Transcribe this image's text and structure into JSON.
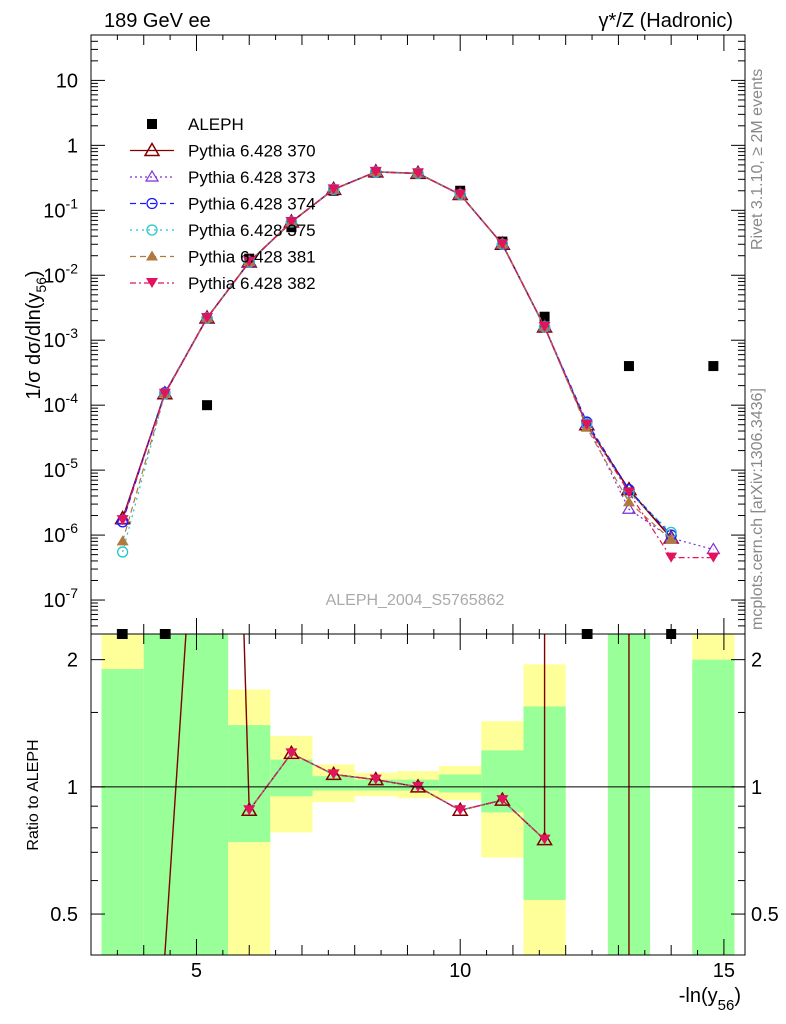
{
  "header": {
    "left": "189 GeV ee",
    "right": "γ*/Z (Hadronic)"
  },
  "side_labels": {
    "rivet": "Rivet 3.1.10, ≥ 2M events",
    "mcplots": "mcplots.cern.ch [arXiv:1306.3436]"
  },
  "watermark": "ALEPH_2004_S5765862",
  "legend": [
    {
      "key": "aleph",
      "label": "ALEPH"
    },
    {
      "key": "p370",
      "label": "Pythia 6.428 370"
    },
    {
      "key": "p373",
      "label": "Pythia 6.428 373"
    },
    {
      "key": "p374",
      "label": "Pythia 6.428 374"
    },
    {
      "key": "p375",
      "label": "Pythia 6.428 375"
    },
    {
      "key": "p381",
      "label": "Pythia 6.428 381"
    },
    {
      "key": "p382",
      "label": "Pythia 6.428 382"
    }
  ],
  "chart_data": [
    {
      "type": "scatter",
      "panel": "main",
      "ylabel": "1/σ  dσ/dln(y56)",
      "y_scale": "log",
      "xlim": [
        3,
        15.4
      ],
      "ylim": [
        3e-08,
        50
      ],
      "y_ticks": [
        "10",
        "1",
        "10^-1",
        "10^-2",
        "10^-3",
        "10^-4",
        "10^-5",
        "10^-6",
        "10^-7"
      ],
      "x": [
        3.6,
        4.4,
        5.2,
        6.0,
        6.8,
        7.6,
        8.4,
        9.2,
        10.0,
        10.8,
        11.6,
        12.4,
        13.2,
        14.0,
        14.8
      ],
      "series": [
        {
          "name": "ALEPH",
          "color": "#000000",
          "values": [
            null,
            null,
            0.0001,
            0.018,
            0.055,
            0.2,
            0.38,
            0.37,
            0.2,
            0.033,
            0.0023,
            null,
            0.0004,
            null,
            0.0004
          ]
        },
        {
          "name": "Pythia 6.428 370",
          "color": "#800000",
          "values": [
            1.8e-06,
            0.00015,
            0.0022,
            0.016,
            0.066,
            0.21,
            0.39,
            0.37,
            0.175,
            0.03,
            0.0016,
            5e-05,
            5e-06,
            9e-07,
            null
          ]
        },
        {
          "name": "Pythia 6.428 373",
          "color": "#7b2fd8",
          "values": [
            1.7e-06,
            0.000155,
            0.0022,
            0.016,
            0.066,
            0.21,
            0.39,
            0.37,
            0.175,
            0.03,
            0.0016,
            5.2e-05,
            2.5e-06,
            9e-07,
            6e-07
          ]
        },
        {
          "name": "Pythia 6.428 374",
          "color": "#1a1aff",
          "values": [
            1.6e-06,
            0.000155,
            0.0022,
            0.016,
            0.066,
            0.21,
            0.39,
            0.37,
            0.175,
            0.03,
            0.0016,
            5.5e-05,
            5e-06,
            1e-06,
            null
          ]
        },
        {
          "name": "Pythia 6.428 375",
          "color": "#20c6c6",
          "values": [
            5.5e-07,
            0.00015,
            0.0022,
            0.016,
            0.066,
            0.21,
            0.39,
            0.37,
            0.175,
            0.03,
            0.0016,
            5.2e-05,
            4.5e-06,
            1.1e-06,
            null
          ]
        },
        {
          "name": "Pythia 6.428 381",
          "color": "#b07a3e",
          "values": [
            8e-07,
            0.00015,
            0.0022,
            0.016,
            0.066,
            0.21,
            0.39,
            0.37,
            0.175,
            0.03,
            0.0016,
            4.5e-05,
            3.2e-06,
            8.5e-07,
            null
          ]
        },
        {
          "name": "Pythia 6.428 382",
          "color": "#e2135e",
          "values": [
            1.7e-06,
            0.00015,
            0.0022,
            0.016,
            0.066,
            0.21,
            0.39,
            0.37,
            0.175,
            0.03,
            0.0016,
            5e-05,
            4.5e-06,
            4.5e-07,
            4.5e-07
          ]
        }
      ]
    },
    {
      "type": "line",
      "panel": "ratio",
      "xlabel": "-ln(y56)",
      "ylabel": "Ratio to ALEPH",
      "y_scale": "log",
      "xlim": [
        3,
        15.4
      ],
      "ylim": [
        0.4,
        2.3
      ],
      "x_ticks": [
        "5",
        "10",
        "15"
      ],
      "y_ticks": [
        "0.5",
        "1",
        "2"
      ],
      "x": [
        6.0,
        6.8,
        7.6,
        8.4,
        9.2,
        10.0,
        10.8,
        11.6
      ],
      "values": [
        0.88,
        1.2,
        1.07,
        1.04,
        1.0,
        0.88,
        0.93,
        0.75
      ],
      "bands": [
        {
          "x": [
            3.6,
            4.4,
            5.2,
            6.0,
            6.8,
            7.6,
            8.4,
            9.2,
            10.0,
            10.8,
            11.6,
            12.4,
            13.2,
            14.0,
            14.8
          ],
          "green": [
            [
              0.4,
              1.9
            ],
            [
              0.4,
              2.3
            ],
            [
              0.4,
              2.3
            ],
            [
              0.74,
              1.4
            ],
            [
              0.95,
              1.16
            ],
            [
              0.98,
              1.06
            ],
            [
              0.98,
              1.04
            ],
            [
              0.98,
              1.04
            ],
            [
              0.97,
              1.07
            ],
            [
              0.87,
              1.22
            ],
            [
              0.54,
              1.55
            ],
            null,
            [
              0.4,
              2.3
            ],
            null,
            [
              0.4,
              2.0
            ]
          ],
          "yellow": [
            [
              0.4,
              2.3
            ],
            [
              0.4,
              2.3
            ],
            [
              0.4,
              2.3
            ],
            [
              0.4,
              1.7
            ],
            [
              0.78,
              1.32
            ],
            [
              0.92,
              1.13
            ],
            [
              0.95,
              1.08
            ],
            [
              0.94,
              1.09
            ],
            [
              0.93,
              1.12
            ],
            [
              0.68,
              1.43
            ],
            [
              0.4,
              1.95
            ],
            null,
            [
              0.4,
              2.3
            ],
            null,
            [
              0.4,
              2.3
            ]
          ]
        }
      ]
    }
  ]
}
